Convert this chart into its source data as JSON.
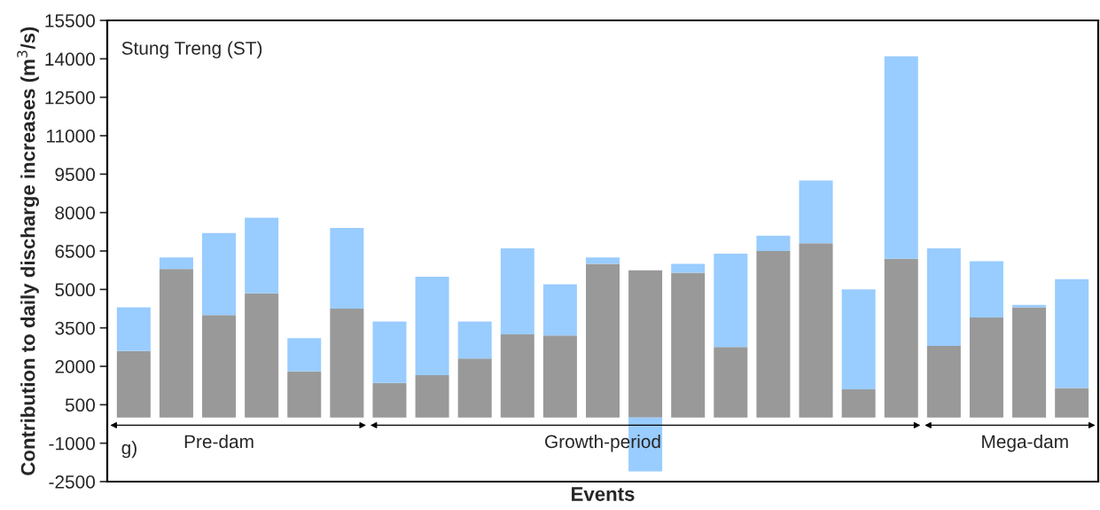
{
  "chart_data": {
    "type": "bar",
    "stacked": true,
    "xlabel": "Events",
    "ylabel": "Contribution to daily discharge increases (m$^{3}$/s)",
    "categories": [
      null,
      null,
      null,
      null,
      null,
      null,
      null,
      null,
      null,
      null,
      null,
      null,
      null,
      null,
      null,
      null,
      null,
      null,
      null,
      null,
      null,
      null,
      null
    ],
    "series": [
      {
        "color": "#999999",
        "values": [
          2600,
          5800,
          4000,
          4850,
          1800,
          4250,
          1350,
          1650,
          2300,
          3250,
          3200,
          6000,
          5750,
          5650,
          2750,
          6500,
          6800,
          1100,
          6200,
          2800,
          3900,
          4300,
          1150
        ]
      },
      {
        "color": "#99ccff",
        "values": [
          1700,
          450,
          3200,
          2950,
          1300,
          3150,
          2400,
          3850,
          1450,
          3350,
          2000,
          250,
          -2100,
          350,
          3650,
          600,
          2450,
          3900,
          7900,
          3800,
          2200,
          100,
          4250
        ]
      }
    ],
    "ylim": [
      -2500,
      15500
    ],
    "yticks": [
      -2500,
      -1000,
      500,
      2000,
      3500,
      5000,
      6500,
      8000,
      9500,
      11000,
      12500,
      14000,
      15500
    ],
    "tick_labels": "y",
    "grid": false,
    "legend": false,
    "annotations": [
      "Stung Treng (ST)",
      "g)",
      "Pre-dam",
      "Growth-period",
      "Mega-dam"
    ]
  }
}
